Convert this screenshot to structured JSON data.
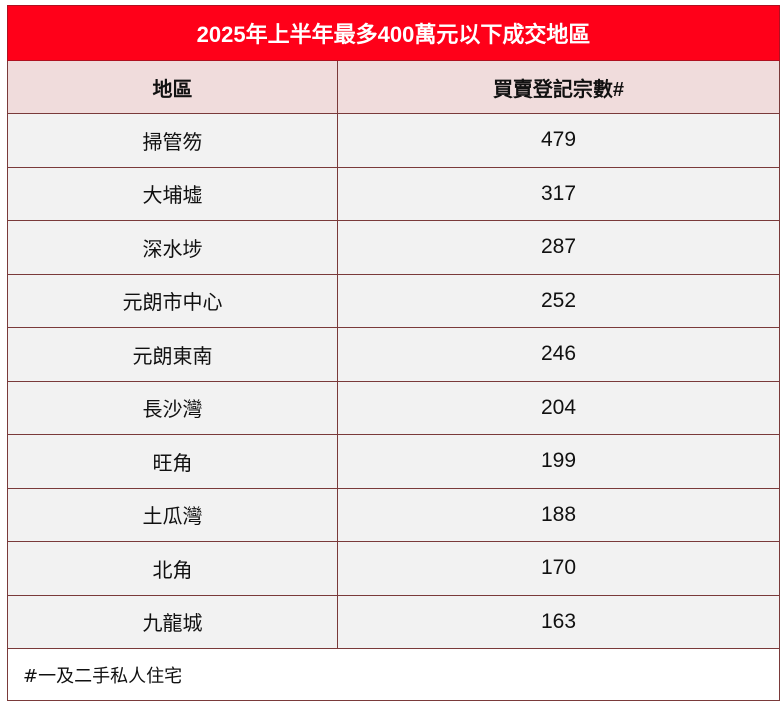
{
  "table": {
    "title": "2025年上半年最多400萬元以下成交地區",
    "headers": [
      "地區",
      "買賣登記宗數#"
    ],
    "rows": [
      {
        "district": "掃管笏",
        "count": "479"
      },
      {
        "district": "大埔墟",
        "count": "317"
      },
      {
        "district": "深水埗",
        "count": "287"
      },
      {
        "district": "元朗市中心",
        "count": "252"
      },
      {
        "district": "元朗東南",
        "count": "246"
      },
      {
        "district": "長沙灣",
        "count": "204"
      },
      {
        "district": "旺角",
        "count": "199"
      },
      {
        "district": "土瓜灣",
        "count": "188"
      },
      {
        "district": "北角",
        "count": "170"
      },
      {
        "district": "九龍城",
        "count": "163"
      }
    ],
    "footnote": "#一及二手私人住宅"
  },
  "colors": {
    "title_bg": "#ff0019",
    "title_text": "#ffffff",
    "header_bg": "#f0dcdc",
    "row_bg": "#f2f2f2",
    "border": "#7a3a3a"
  }
}
